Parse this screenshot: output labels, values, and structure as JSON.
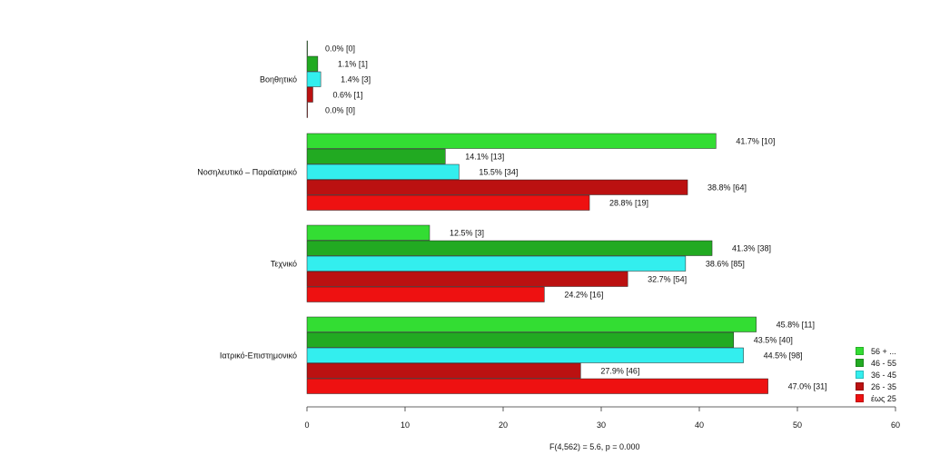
{
  "chart_data": {
    "type": "bar",
    "orientation": "horizontal",
    "title": "",
    "xlabel": "",
    "ylabel": "",
    "xlim": [
      0,
      60
    ],
    "x_ticks": [
      "0",
      "10",
      "20",
      "30",
      "40",
      "50",
      "60"
    ],
    "categories": [
      "Βοηθητικό",
      "Νοσηλευτικό – Παραϊατρικό",
      "Τεχνικό",
      "Ιατρικό-Επιστημονικό"
    ],
    "series": [
      {
        "name": "56 + ...",
        "color": "#33dd33",
        "values": [
          0.0,
          41.7,
          12.5,
          45.8
        ],
        "labels": [
          "0.0% [0]",
          "41.7% [10]",
          "12.5% [3]",
          "45.8% [11]"
        ]
      },
      {
        "name": "46 - 55",
        "color": "#22aa22",
        "values": [
          1.1,
          14.1,
          41.3,
          43.5
        ],
        "labels": [
          "1.1% [1]",
          "14.1% [13]",
          "41.3% [38]",
          "43.5% [40]"
        ]
      },
      {
        "name": "36 - 45",
        "color": "#33eeee",
        "values": [
          1.4,
          15.5,
          38.6,
          44.5
        ],
        "labels": [
          "1.4% [3]",
          "15.5% [34]",
          "38.6% [85]",
          "44.5% [98]"
        ]
      },
      {
        "name": "26 - 35",
        "color": "#bb1111",
        "values": [
          0.6,
          38.8,
          32.7,
          27.9
        ],
        "labels": [
          "0.6% [1]",
          "38.8% [64]",
          "32.7% [54]",
          "27.9% [46]"
        ]
      },
      {
        "name": "έως 25",
        "color": "#ee1111",
        "values": [
          0.0,
          28.8,
          24.2,
          47.0
        ],
        "labels": [
          "0.0% [0]",
          "28.8% [19]",
          "24.2% [16]",
          "47.0% [31]"
        ]
      }
    ],
    "grid": false,
    "legend_position": "bottom-right",
    "annotation": "F(4,562) = 5.6,   p = 0.000"
  }
}
